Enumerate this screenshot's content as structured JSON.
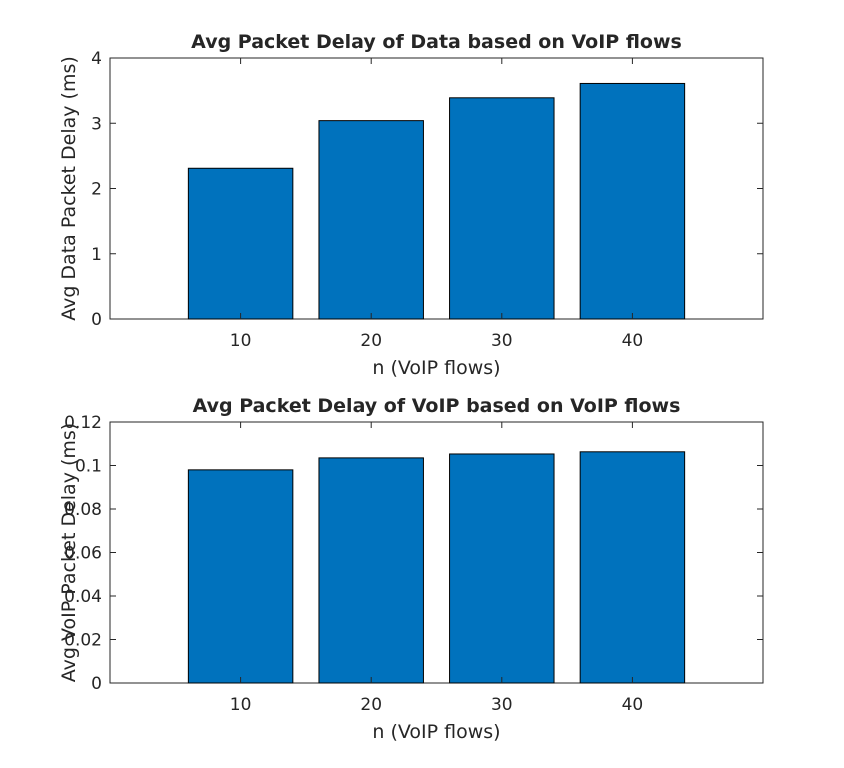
{
  "chart_data": [
    {
      "type": "bar",
      "title": "Avg Packet Delay of Data based on VoIP flows",
      "xlabel": "n (VoIP flows)",
      "ylabel": "Avg Data Packet Delay (ms)",
      "categories": [
        "10",
        "20",
        "30",
        "40"
      ],
      "values": [
        2.31,
        3.04,
        3.39,
        3.61
      ],
      "xlim": [
        0,
        50
      ],
      "ylim": [
        0,
        4
      ],
      "yticks": [
        0,
        1,
        2,
        3,
        4
      ],
      "ytick_labels": [
        "0",
        "1",
        "2",
        "3",
        "4"
      ],
      "grid": false,
      "bar_color": "#0072BD"
    },
    {
      "type": "bar",
      "title": "Avg Packet Delay of VoIP based on VoIP flows",
      "xlabel": "n (VoIP flows)",
      "ylabel": "Avg VoIP Packet Delay (ms)",
      "categories": [
        "10",
        "20",
        "30",
        "40"
      ],
      "values": [
        0.098,
        0.1035,
        0.1053,
        0.1063
      ],
      "xlim": [
        0,
        50
      ],
      "ylim": [
        0,
        0.12
      ],
      "yticks": [
        0,
        0.02,
        0.04,
        0.06,
        0.08,
        0.1,
        0.12
      ],
      "ytick_labels": [
        "0",
        "0.02",
        "0.04",
        "0.06",
        "0.08",
        "0.1",
        "0.12"
      ],
      "grid": false,
      "bar_color": "#0072BD"
    }
  ]
}
